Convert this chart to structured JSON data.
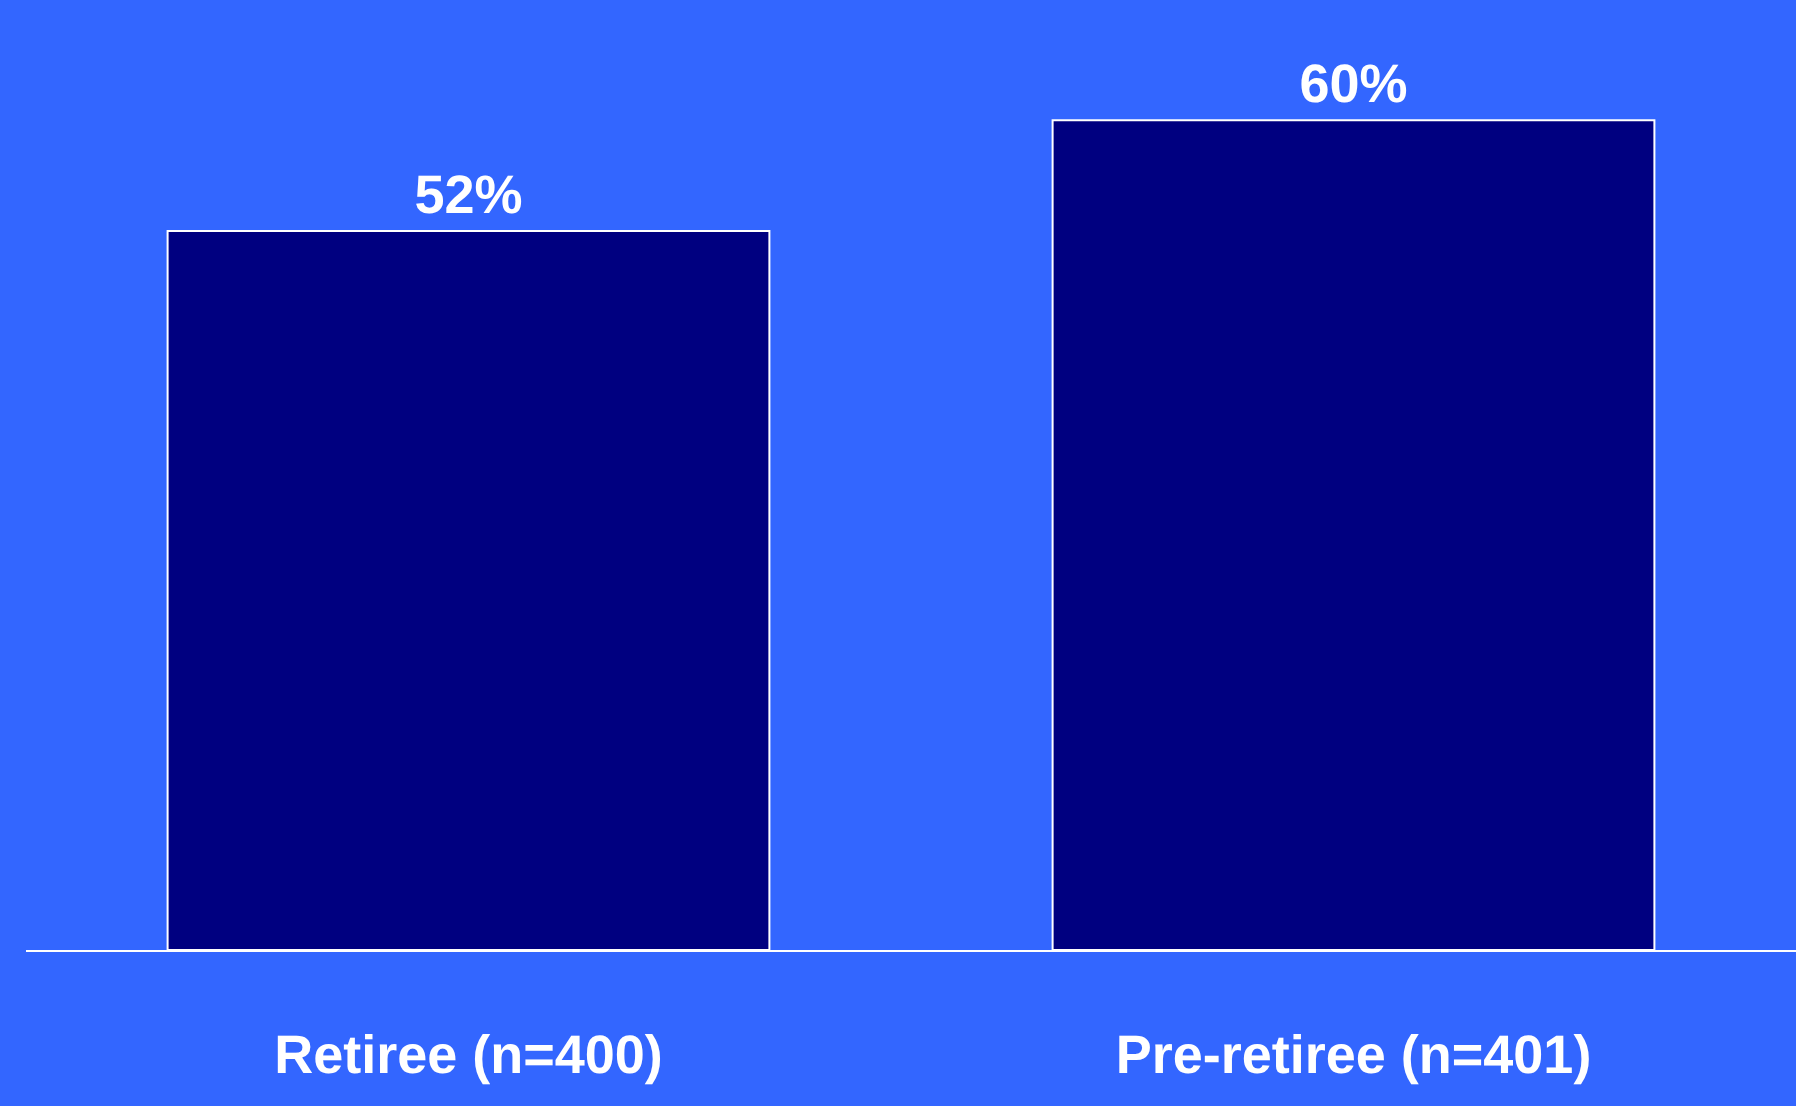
{
  "chart_data": {
    "type": "bar",
    "categories": [
      "Retiree (n=400)",
      "Pre-retiree (n=401)"
    ],
    "series": [
      {
        "color": "#000080",
        "values": [
          52,
          60
        ],
        "value_labels": [
          "52%",
          "60%"
        ]
      }
    ],
    "ylim": [
      0,
      68.7
    ],
    "grid": false,
    "legend": false
  }
}
